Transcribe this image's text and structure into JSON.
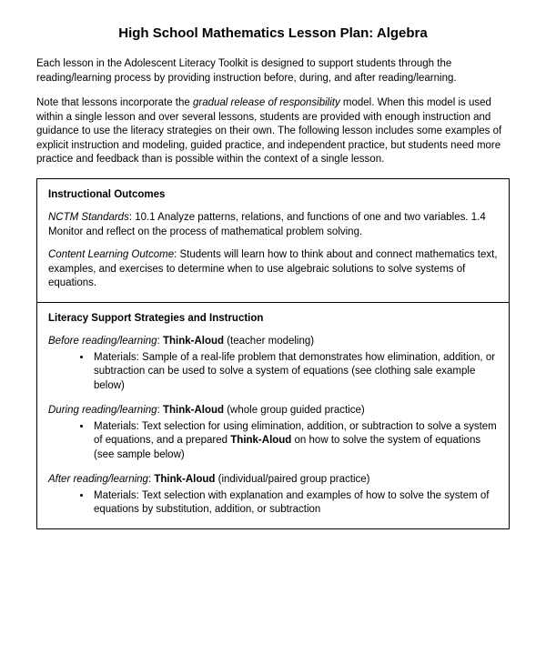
{
  "title": "High School Mathematics Lesson Plan: Algebra",
  "intro": {
    "p1": "Each lesson in the Adolescent Literacy Toolkit is designed to support students through the reading/learning process by providing instruction before, during, and after reading/learning.",
    "p2_a": "Note that lessons incorporate the ",
    "p2_em": "gradual release of responsibility",
    "p2_b": " model. When this model is used within a single lesson and over several lessons, students are provided with enough instruction and guidance to use the literacy strategies on their own. The following lesson includes some examples of explicit instruction and modeling, guided practice, and independent practice, but students need more practice and feedback than is possible within the context of a single lesson."
  },
  "outcomes": {
    "heading": "Instructional Outcomes",
    "standards_label": "NCTM Standards",
    "standards_text": ": 10.1 Analyze patterns, relations, and functions of one and two variables. 1.4 Monitor and reflect on the process of mathematical problem solving.",
    "clo_label": "Content Learning Outcome",
    "clo_text": ": Students will learn how to think about and connect mathematics text, examples, and exercises to determine when to use algebraic solutions to solve systems of equations."
  },
  "literacy": {
    "heading": "Literacy Support Strategies and Instruction",
    "phases": [
      {
        "stage_label": "Before reading/learning",
        "strategy": "Think-Aloud",
        "mode": " (teacher modeling)",
        "material": "Materials: Sample of a real-life problem that demonstrates how elimination, addition, or subtraction can be used to solve a system of equations (see clothing sale example below)"
      },
      {
        "stage_label": "During reading/learning",
        "strategy": "Think-Aloud",
        "mode": " (whole group guided practice)",
        "material_a": "Materials: Text selection for using elimination, addition, or subtraction to solve a system of equations, and a prepared ",
        "material_bold": "Think-Aloud",
        "material_b": " on how to solve the system of equations (see sample below)"
      },
      {
        "stage_label": "After reading/learning",
        "strategy": "Think-Aloud",
        "mode": " (individual/paired group practice)",
        "material": "Materials: Text selection with explanation and examples of how to solve the system of equations by substitution, addition, or subtraction"
      }
    ]
  }
}
